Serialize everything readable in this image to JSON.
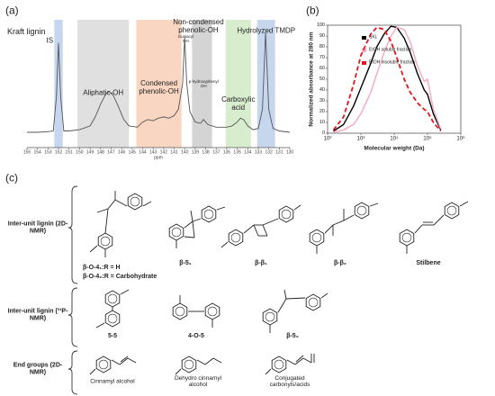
{
  "panel_labels": [
    "(a)",
    "(b)",
    "(c)"
  ],
  "chart_data": [
    {
      "type": "line",
      "title": "Kraft lignin",
      "x_label": "ppm",
      "color": "#555555",
      "x": [
        155,
        154,
        153,
        152.5,
        152.2,
        152.0,
        151.8,
        151.5,
        151,
        150,
        149,
        148.5,
        148,
        147.5,
        147.2,
        146.8,
        146.3,
        145.8,
        145.3,
        144.5,
        144,
        143.5,
        143,
        142.5,
        142,
        141.5,
        141,
        140.6,
        140.2,
        140.0,
        139.8,
        139.5,
        139,
        138.5,
        138.2,
        137.8,
        137,
        136,
        135.5,
        135,
        134.7,
        134.4,
        134,
        133.5,
        133,
        132.6,
        132.3,
        132.0,
        131.6,
        131,
        130
      ],
      "values": [
        12,
        12,
        12.5,
        13,
        40,
        82,
        40,
        13,
        13,
        14,
        17,
        24,
        34,
        42,
        44,
        41,
        32,
        22,
        17,
        16,
        20,
        22,
        21,
        23,
        24,
        23,
        25,
        30,
        50,
        86,
        50,
        28,
        20,
        19,
        22,
        18,
        16,
        16,
        17,
        20,
        23,
        22,
        17,
        14,
        15,
        30,
        90,
        30,
        15,
        13,
        12
      ],
      "xlim": [
        155,
        130
      ],
      "xticks": [
        155,
        154,
        153,
        152,
        151,
        150,
        149,
        148,
        147,
        146,
        145,
        144,
        143,
        142,
        141,
        140,
        139,
        138,
        137,
        136,
        135,
        134,
        133,
        132,
        131,
        130
      ],
      "ylim": [
        0,
        100
      ],
      "regions": [
        {
          "label": "IS",
          "range": [
            152.4,
            151.6
          ],
          "color": "#c6d6ec"
        },
        {
          "label": "Aliphatic-OH",
          "range": [
            150.2,
            145.3
          ],
          "color": "#e0e0e0"
        },
        {
          "label": "Condensed phenolic-OH",
          "range": [
            144.6,
            140.3
          ],
          "color": "#f9d6c2"
        },
        {
          "label": "Non-condensed phenolic-OH",
          "range": [
            139.3,
            137.4
          ],
          "color": "#d4d4d4"
        },
        {
          "label": "Carboxylic acid",
          "range": [
            136.1,
            133.7
          ],
          "color": "#d8ecce"
        },
        {
          "label": "Hydrolyzed TMDP",
          "range": [
            133.1,
            131.4
          ],
          "color": "#c6d6ec"
        }
      ],
      "annotations": [
        {
          "text": "Guaiacyl OH",
          "x": 139.9
        },
        {
          "text": "p-hydroxyphenyl OH",
          "x": 138.2
        }
      ]
    },
    {
      "type": "line",
      "x_label": "Molecular weight (Da)",
      "y_label": "Normalized absorbance at 280 nm",
      "log_x": true,
      "legend": "top",
      "x": [
        150,
        300,
        600,
        1000,
        2000,
        3000,
        5000,
        8000,
        12000,
        20000,
        30000,
        50000,
        80000,
        100000,
        150000,
        250000
      ],
      "series": [
        {
          "name": "SKL",
          "color": "#000000",
          "dash": false,
          "values": [
            2,
            8,
            25,
            42,
            65,
            80,
            92,
            99,
            98,
            88,
            75,
            55,
            40,
            36,
            18,
            3
          ]
        },
        {
          "name": "EtOH soluble fraction",
          "color": "#f4a9c0",
          "dash": false,
          "values": [
            1,
            3,
            8,
            18,
            38,
            55,
            75,
            90,
            98,
            96,
            85,
            62,
            48,
            50,
            22,
            4
          ]
        },
        {
          "name": "EtOH insoluble fraction",
          "color": "#e8141c",
          "dash": true,
          "values": [
            3,
            15,
            45,
            72,
            92,
            98,
            96,
            85,
            70,
            50,
            38,
            28,
            22,
            20,
            10,
            2
          ]
        }
      ],
      "xlim": [
        100,
        1000000
      ],
      "xticks": [
        {
          "value": 100,
          "label": "10²"
        },
        {
          "value": 1000,
          "label": "10³"
        },
        {
          "value": 10000,
          "label": "10⁴"
        },
        {
          "value": 100000,
          "label": "10⁵"
        },
        {
          "value": 1000000,
          "label": "10⁶"
        }
      ],
      "ylim": [
        0,
        100
      ],
      "yticks": [
        0,
        10,
        20,
        30,
        40,
        50,
        60,
        70,
        80,
        90,
        100
      ]
    }
  ],
  "structures": {
    "rows": [
      {
        "label": "Inter-unit lignin (2D-NMR)",
        "items": [
          {
            "labels": [
              "β-O-4₁:R = H",
              "β-O-4₂:R = Carbohydrate"
            ]
          },
          {
            "labels": [
              "β-5₁"
            ]
          },
          {
            "labels": [
              "β-β₁"
            ]
          },
          {
            "labels": [
              "β-β₂"
            ]
          },
          {
            "labels": [
              "Stilbene"
            ]
          }
        ]
      },
      {
        "label": "Inter-unit lignin (³¹P-NMR)",
        "items": [
          {
            "labels": [
              "5-5"
            ]
          },
          {
            "labels": [
              "4-O-5"
            ]
          },
          {
            "labels": [
              "β-5₂"
            ]
          }
        ]
      },
      {
        "label": "End groups (2D-NMR)",
        "items": [
          {
            "labels": [
              "Cinnamyl alcohol"
            ]
          },
          {
            "labels": [
              "Dehydro cinnamyl alcohol"
            ]
          },
          {
            "labels": [
              "Conjugated carbonyls/acids"
            ]
          }
        ]
      }
    ]
  }
}
